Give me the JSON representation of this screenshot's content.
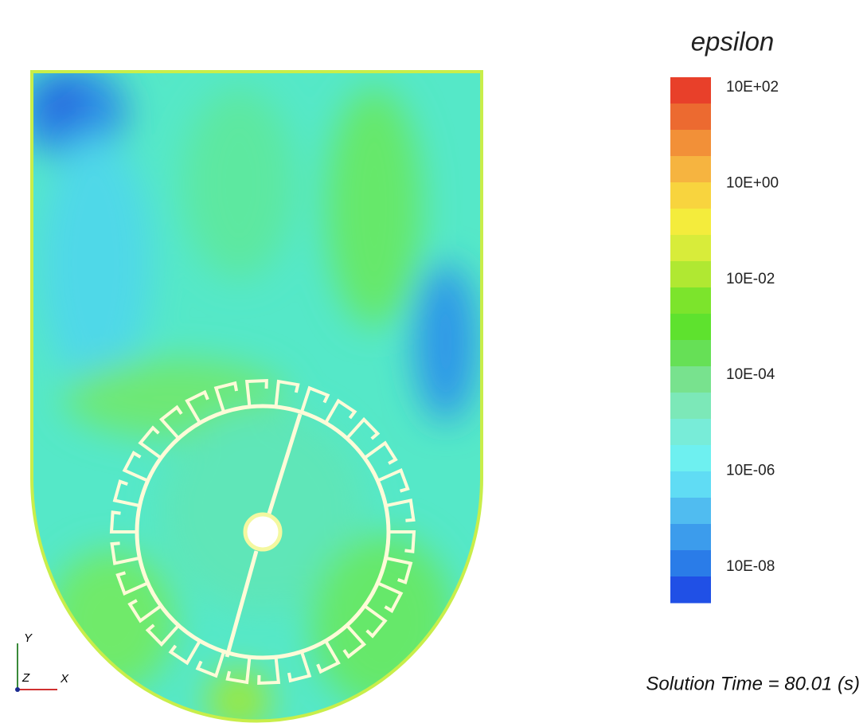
{
  "legend": {
    "title": "epsilon",
    "labels": [
      "10E+02",
      "10E+00",
      "10E-02",
      "10E-04",
      "10E-06",
      "10E-08"
    ]
  },
  "annotation": "Solution Time = 80.01 (s)",
  "axes_triad": {
    "y": "Y",
    "z": "Z",
    "x": "X"
  }
}
